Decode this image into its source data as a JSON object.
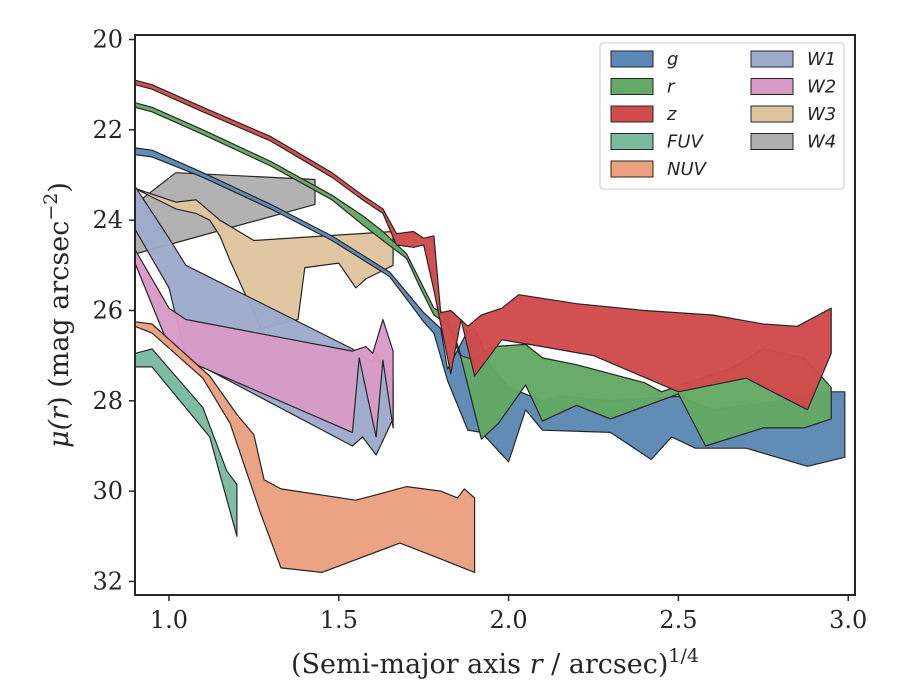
{
  "chart_data": {
    "type": "area",
    "title": "",
    "xlabel_main": "(Semi-major axis ",
    "xlabel_var": "r",
    "xlabel_rest": " / arcsec)",
    "xlabel_sup": "1/4",
    "ylabel_main": "μ(",
    "ylabel_var": "r",
    "ylabel_rest": ") (mag arcsec",
    "ylabel_sup": "−2",
    "ylabel_close": ")",
    "xlim": [
      0.9,
      3.02
    ],
    "ylim": [
      32.3,
      19.9
    ],
    "y_inverted": true,
    "grid": false,
    "legend_position": "top-right",
    "x_ticks": [
      1.0,
      1.5,
      2.0,
      2.5,
      3.0
    ],
    "x_tick_labels": [
      "1.0",
      "1.5",
      "2.0",
      "2.5",
      "3.0"
    ],
    "y_ticks": [
      20,
      22,
      24,
      26,
      28,
      30,
      32
    ],
    "y_tick_labels": [
      "20",
      "22",
      "24",
      "26",
      "28",
      "30",
      "32"
    ],
    "series": [
      {
        "name": "W4",
        "color": "#b0b0b0",
        "upper": [
          [
            0.9,
            23.65
          ],
          [
            1.02,
            22.95
          ],
          [
            1.43,
            23.1
          ]
        ],
        "lower": [
          [
            0.9,
            24.75
          ],
          [
            1.43,
            23.65
          ]
        ]
      },
      {
        "name": "W3",
        "color": "#dfc59f",
        "upper": [
          [
            0.9,
            23.3
          ],
          [
            1.02,
            23.6
          ],
          [
            1.08,
            23.55
          ],
          [
            1.15,
            24.0
          ],
          [
            1.25,
            24.45
          ],
          [
            1.66,
            24.25
          ]
        ],
        "lower": [
          [
            0.9,
            23.3
          ],
          [
            1.02,
            23.75
          ],
          [
            1.08,
            23.85
          ],
          [
            1.12,
            24.0
          ],
          [
            1.15,
            24.35
          ],
          [
            1.18,
            24.9
          ],
          [
            1.27,
            26.4
          ],
          [
            1.38,
            26.2
          ],
          [
            1.4,
            25.05
          ],
          [
            1.5,
            24.95
          ],
          [
            1.55,
            25.5
          ],
          [
            1.58,
            25.3
          ],
          [
            1.62,
            25.15
          ],
          [
            1.66,
            25.0
          ]
        ]
      },
      {
        "name": "W1",
        "color": "#9daacb",
        "upper": [
          [
            0.9,
            23.25
          ],
          [
            1.0,
            24.4
          ],
          [
            1.05,
            25.0
          ],
          [
            1.54,
            26.85
          ],
          [
            1.57,
            27.0
          ],
          [
            1.6,
            27.15
          ],
          [
            1.61,
            26.95
          ],
          [
            1.66,
            27.6
          ]
        ],
        "lower": [
          [
            0.9,
            24.2
          ],
          [
            1.0,
            25.5
          ],
          [
            1.05,
            27.05
          ],
          [
            1.54,
            29.0
          ],
          [
            1.57,
            28.8
          ],
          [
            1.61,
            29.2
          ],
          [
            1.66,
            28.4
          ]
        ]
      },
      {
        "name": "W2",
        "color": "#d99ac6",
        "upper": [
          [
            0.9,
            24.65
          ],
          [
            1.0,
            25.95
          ],
          [
            1.05,
            26.2
          ],
          [
            1.54,
            26.9
          ],
          [
            1.58,
            26.8
          ],
          [
            1.6,
            26.95
          ],
          [
            1.63,
            26.2
          ],
          [
            1.66,
            26.9
          ]
        ],
        "lower": [
          [
            0.9,
            24.95
          ],
          [
            1.0,
            26.8
          ],
          [
            1.05,
            27.1
          ],
          [
            1.54,
            28.7
          ],
          [
            1.56,
            27.05
          ],
          [
            1.61,
            28.8
          ],
          [
            1.63,
            27.1
          ],
          [
            1.66,
            28.6
          ]
        ]
      },
      {
        "name": "FUV",
        "color": "#7abba0",
        "upper": [
          [
            0.9,
            26.95
          ],
          [
            0.95,
            26.85
          ],
          [
            1.1,
            28.15
          ],
          [
            1.17,
            29.55
          ],
          [
            1.2,
            29.85
          ]
        ],
        "lower": [
          [
            0.9,
            27.25
          ],
          [
            0.95,
            27.25
          ],
          [
            1.12,
            28.8
          ],
          [
            1.2,
            31.0
          ]
        ]
      },
      {
        "name": "NUV",
        "color": "#eba07f",
        "upper": [
          [
            0.9,
            26.25
          ],
          [
            0.95,
            26.3
          ],
          [
            1.12,
            27.45
          ],
          [
            1.2,
            28.3
          ],
          [
            1.25,
            28.75
          ],
          [
            1.28,
            29.75
          ],
          [
            1.33,
            29.95
          ],
          [
            1.55,
            30.2
          ],
          [
            1.7,
            29.9
          ],
          [
            1.8,
            30.0
          ],
          [
            1.85,
            30.15
          ],
          [
            1.87,
            29.95
          ],
          [
            1.9,
            30.15
          ]
        ],
        "lower": [
          [
            0.9,
            26.35
          ],
          [
            0.95,
            26.5
          ],
          [
            1.1,
            27.5
          ],
          [
            1.18,
            28.5
          ],
          [
            1.27,
            30.5
          ],
          [
            1.33,
            31.7
          ],
          [
            1.45,
            31.8
          ],
          [
            1.68,
            31.15
          ],
          [
            1.8,
            31.5
          ],
          [
            1.9,
            31.8
          ]
        ]
      },
      {
        "name": "g",
        "color": "#5b88b4",
        "upper": [
          [
            0.9,
            22.4
          ],
          [
            0.95,
            22.45
          ],
          [
            1.1,
            22.95
          ],
          [
            1.3,
            23.65
          ],
          [
            1.48,
            24.35
          ],
          [
            1.65,
            25.15
          ],
          [
            1.7,
            25.6
          ],
          [
            1.75,
            26.05
          ],
          [
            1.8,
            26.4
          ],
          [
            1.82,
            27.3
          ],
          [
            1.88,
            26.45
          ],
          [
            1.9,
            26.4
          ],
          [
            1.95,
            27.25
          ],
          [
            2.0,
            27.7
          ],
          [
            2.1,
            28.0
          ],
          [
            2.15,
            27.9
          ],
          [
            2.3,
            28.0
          ],
          [
            2.5,
            27.9
          ],
          [
            2.6,
            28.2
          ],
          [
            2.8,
            28.0
          ],
          [
            2.9,
            27.8
          ],
          [
            2.99,
            27.8
          ]
        ],
        "lower": [
          [
            0.9,
            22.55
          ],
          [
            0.95,
            22.6
          ],
          [
            1.1,
            23.05
          ],
          [
            1.3,
            23.75
          ],
          [
            1.48,
            24.45
          ],
          [
            1.65,
            25.25
          ],
          [
            1.7,
            25.75
          ],
          [
            1.75,
            26.25
          ],
          [
            1.78,
            26.5
          ],
          [
            1.82,
            27.55
          ],
          [
            1.88,
            28.65
          ],
          [
            1.92,
            28.7
          ],
          [
            2.0,
            29.35
          ],
          [
            2.05,
            28.2
          ],
          [
            2.1,
            28.65
          ],
          [
            2.3,
            28.7
          ],
          [
            2.42,
            29.3
          ],
          [
            2.48,
            28.8
          ],
          [
            2.55,
            29.05
          ],
          [
            2.7,
            29.05
          ],
          [
            2.88,
            29.45
          ],
          [
            2.99,
            29.25
          ]
        ]
      },
      {
        "name": "r",
        "color": "#64a965",
        "upper": [
          [
            0.9,
            21.4
          ],
          [
            0.95,
            21.5
          ],
          [
            1.1,
            22.0
          ],
          [
            1.3,
            22.7
          ],
          [
            1.48,
            23.45
          ],
          [
            1.57,
            23.9
          ],
          [
            1.63,
            24.25
          ],
          [
            1.7,
            24.75
          ],
          [
            1.74,
            25.35
          ],
          [
            1.78,
            25.95
          ],
          [
            1.82,
            26.1
          ],
          [
            1.86,
            27.0
          ],
          [
            1.9,
            27.1
          ],
          [
            1.95,
            26.8
          ],
          [
            2.05,
            26.75
          ],
          [
            2.1,
            27.05
          ],
          [
            2.2,
            27.2
          ],
          [
            2.4,
            27.6
          ],
          [
            2.45,
            27.8
          ],
          [
            2.65,
            27.3
          ],
          [
            2.75,
            26.85
          ],
          [
            2.87,
            27.05
          ],
          [
            2.95,
            27.7
          ]
        ],
        "lower": [
          [
            0.9,
            21.5
          ],
          [
            0.95,
            21.6
          ],
          [
            1.1,
            22.1
          ],
          [
            1.3,
            22.8
          ],
          [
            1.48,
            23.55
          ],
          [
            1.57,
            24.1
          ],
          [
            1.63,
            24.45
          ],
          [
            1.7,
            24.85
          ],
          [
            1.74,
            25.5
          ],
          [
            1.78,
            26.1
          ],
          [
            1.82,
            26.3
          ],
          [
            1.86,
            27.05
          ],
          [
            1.92,
            28.85
          ],
          [
            1.97,
            28.5
          ],
          [
            2.05,
            27.65
          ],
          [
            2.1,
            28.45
          ],
          [
            2.2,
            28.1
          ],
          [
            2.3,
            28.4
          ],
          [
            2.5,
            27.85
          ],
          [
            2.58,
            29.0
          ],
          [
            2.75,
            28.6
          ],
          [
            2.87,
            28.6
          ],
          [
            2.95,
            28.4
          ]
        ]
      },
      {
        "name": "z",
        "color": "#d14a4c",
        "upper": [
          [
            0.9,
            20.9
          ],
          [
            0.95,
            21.0
          ],
          [
            1.1,
            21.5
          ],
          [
            1.3,
            22.15
          ],
          [
            1.48,
            22.95
          ],
          [
            1.57,
            23.45
          ],
          [
            1.63,
            23.75
          ],
          [
            1.67,
            24.3
          ],
          [
            1.72,
            24.25
          ],
          [
            1.75,
            24.4
          ],
          [
            1.78,
            24.35
          ],
          [
            1.8,
            26.05
          ],
          [
            1.83,
            26.0
          ],
          [
            1.88,
            26.35
          ],
          [
            1.92,
            26.1
          ],
          [
            1.98,
            25.95
          ],
          [
            2.03,
            25.65
          ],
          [
            2.2,
            25.85
          ],
          [
            2.4,
            26.0
          ],
          [
            2.6,
            26.1
          ],
          [
            2.75,
            26.3
          ],
          [
            2.85,
            26.35
          ],
          [
            2.95,
            25.95
          ]
        ],
        "lower": [
          [
            0.9,
            21.0
          ],
          [
            0.95,
            21.1
          ],
          [
            1.1,
            21.6
          ],
          [
            1.3,
            22.25
          ],
          [
            1.48,
            23.05
          ],
          [
            1.57,
            23.55
          ],
          [
            1.63,
            23.85
          ],
          [
            1.67,
            24.55
          ],
          [
            1.72,
            24.6
          ],
          [
            1.75,
            24.55
          ],
          [
            1.78,
            25.55
          ],
          [
            1.8,
            26.3
          ],
          [
            1.83,
            27.4
          ],
          [
            1.86,
            26.2
          ],
          [
            1.9,
            27.45
          ],
          [
            1.98,
            26.65
          ],
          [
            2.1,
            26.8
          ],
          [
            2.25,
            27.0
          ],
          [
            2.5,
            27.8
          ],
          [
            2.7,
            27.5
          ],
          [
            2.88,
            28.2
          ],
          [
            2.95,
            26.95
          ]
        ]
      }
    ],
    "legend_order": [
      "g",
      "r",
      "z",
      "FUV",
      "NUV",
      "W1",
      "W2",
      "W3",
      "W4"
    ]
  }
}
